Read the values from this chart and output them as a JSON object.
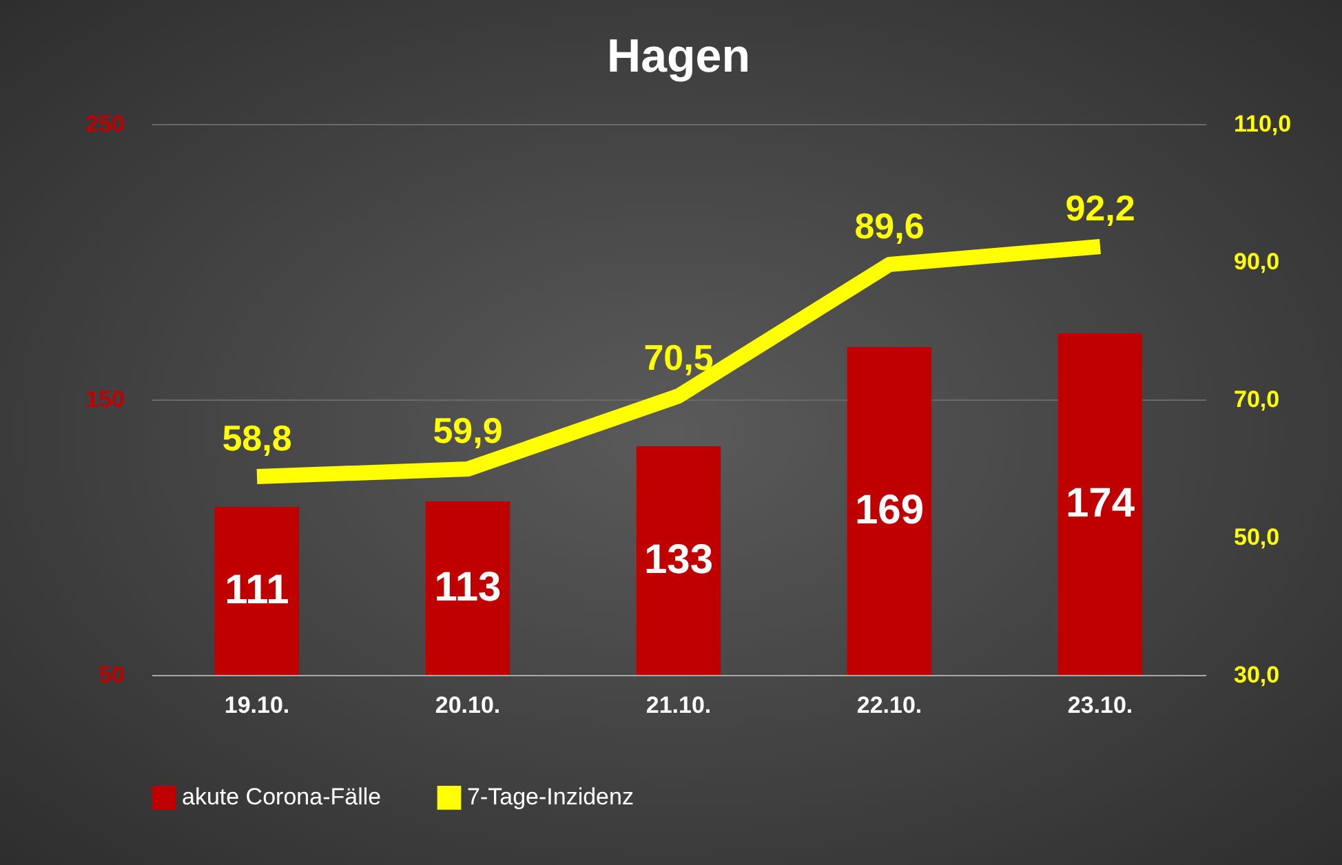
{
  "chart_data": {
    "type": "bar",
    "title": "Hagen",
    "categories": [
      "19.10.",
      "20.10.",
      "21.10.",
      "22.10.",
      "23.10."
    ],
    "series": [
      {
        "name": "akute Corona-Fälle",
        "color": "#c00000",
        "values": [
          111,
          113,
          133,
          169,
          174
        ],
        "value_labels": [
          "111",
          "113",
          "133",
          "169",
          "174"
        ]
      },
      {
        "name": "7-Tage-Inzidenz",
        "type": "line",
        "axis": "y2",
        "color": "#ffff00",
        "values": [
          58.8,
          59.9,
          70.5,
          89.6,
          92.2
        ],
        "value_labels": [
          "58,8",
          "59,9",
          "70,5",
          "89,6",
          "92,2"
        ]
      }
    ],
    "ylim": [
      50,
      250
    ],
    "yticks": [
      50,
      150,
      250
    ],
    "y2lim": [
      30,
      110
    ],
    "y2ticks": [
      {
        "value": 30,
        "label": "30,0"
      },
      {
        "value": 50,
        "label": "50,0"
      },
      {
        "value": 70,
        "label": "70,0"
      },
      {
        "value": 90,
        "label": "90,0"
      },
      {
        "value": 110,
        "label": "110,0"
      }
    ],
    "grid": "y",
    "legend": "bottom"
  }
}
